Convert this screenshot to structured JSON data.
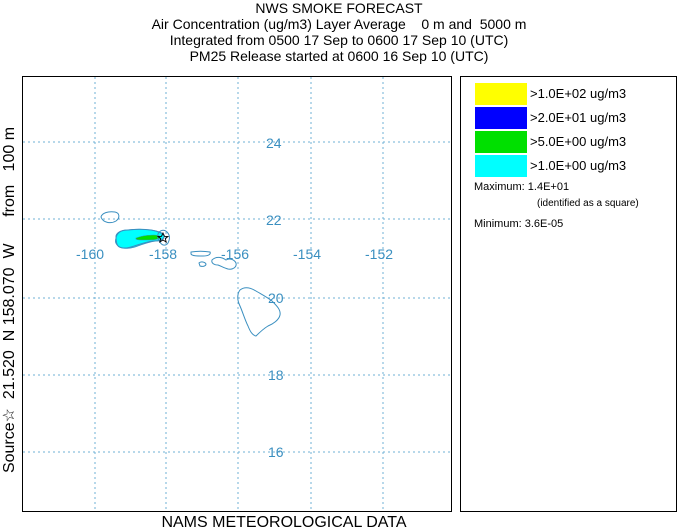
{
  "titles": {
    "line1": "NWS SMOKE FORECAST",
    "line2": "Air Concentration (ug/m3) Layer Average    0 m and  5000 m",
    "line3": "Integrated from 0500 17 Sep to 0600 17 Sep 10 (UTC)",
    "line4": "PM25 Release started at 0600 16 Sep 10 (UTC)"
  },
  "source_label": "Source☆  21.520  N 158.070  W      from   100 m",
  "bottom_label": "NAMS METEOROLOGICAL DATA",
  "map": {
    "latitude_labels": [
      "24",
      "22",
      "20",
      "18",
      "16"
    ],
    "longitude_labels": [
      "-160",
      "-158",
      "-156",
      "-154",
      "-152"
    ],
    "colors": {
      "grid": "#6fb0d6",
      "coast": "#3a8fc0",
      "labels": "#3a8fc0"
    },
    "source_marker": "star-icon"
  },
  "legend": {
    "items": [
      {
        "color": "#ffff00",
        "label": ">1.0E+02 ug/m3"
      },
      {
        "color": "#0000ff",
        "label": ">2.0E+01 ug/m3"
      },
      {
        "color": "#00e000",
        "label": ">5.0E+00 ug/m3"
      },
      {
        "color": "#00ffff",
        "label": ">1.0E+00 ug/m3"
      }
    ],
    "maximum": "Maximum: 1.4E+01",
    "maximum_note": "(identified as a square)",
    "minimum": "Minimum: 3.6E-05"
  }
}
